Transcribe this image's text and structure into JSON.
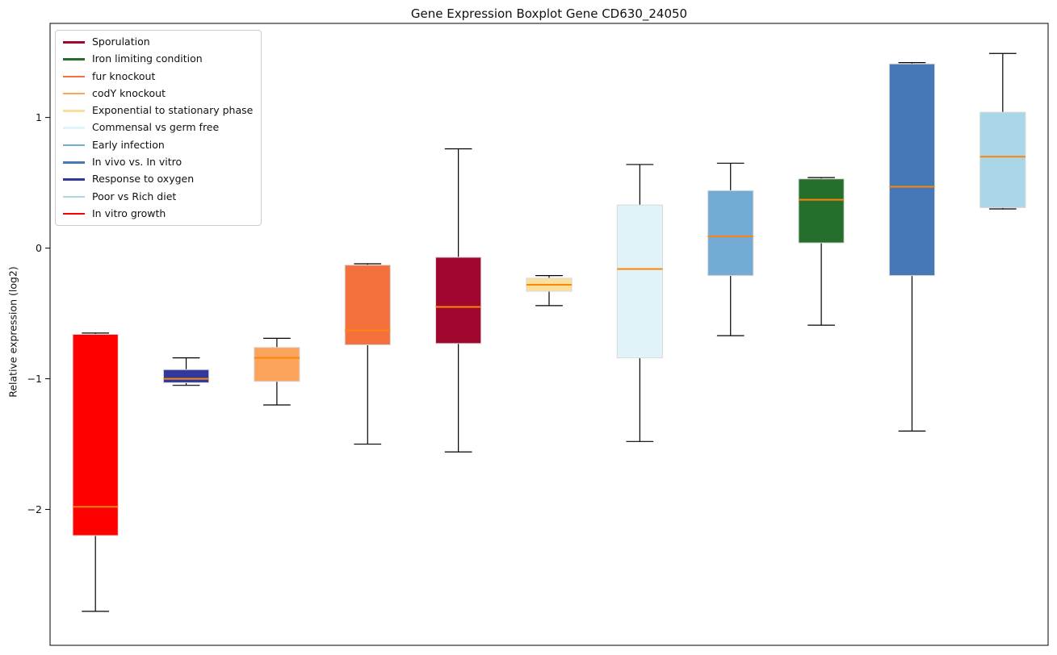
{
  "figure": {
    "title": "Gene Expression Boxplot Gene CD630_24050",
    "ylabel": "Relative expression (log2)"
  },
  "chart_data": {
    "type": "boxplot",
    "title": "Gene Expression Boxplot Gene CD630_24050",
    "xlabel": "",
    "ylabel": "Relative expression (log2)",
    "ylim": [
      -3.04,
      1.72
    ],
    "yticks": [
      1,
      0,
      -1,
      -2
    ],
    "ytick_labels": [
      "1",
      "0",
      "−1",
      "−2"
    ],
    "xtick_labels": [],
    "grid": false,
    "legend_position": "upper left",
    "median_color": "#FC8608",
    "whisker_color": "#000000",
    "box_edge_color": "#d8d8d8",
    "legend": [
      {
        "label": "Sporulation",
        "color": "#A0062E"
      },
      {
        "label": "Iron limiting condition",
        "color": "#256E2B"
      },
      {
        "label": "fur knockout",
        "color": "#F4703D"
      },
      {
        "label": "codY knockout",
        "color": "#FCA45C"
      },
      {
        "label": "Exponential to stationary phase",
        "color": "#FBDF9D"
      },
      {
        "label": "Commensal vs germ free",
        "color": "#E2F2F9"
      },
      {
        "label": "Early infection",
        "color": "#74ABD4"
      },
      {
        "label": "In vivo vs. In vitro",
        "color": "#4678B8"
      },
      {
        "label": "Response to oxygen",
        "color": "#31389B"
      },
      {
        "label": "Poor vs Rich diet",
        "color": "#A9D7E8"
      },
      {
        "label": "In vitro growth",
        "color": "#FF0000"
      }
    ],
    "boxes": [
      {
        "label": "In vitro growth",
        "color": "#FF0000",
        "whisker_low": -2.78,
        "q1": -2.2,
        "median": -1.98,
        "q3": -0.66,
        "whisker_high": -0.65
      },
      {
        "label": "Response to oxygen",
        "color": "#31389B",
        "whisker_low": -1.05,
        "q1": -1.03,
        "median": -1.0,
        "q3": -0.93,
        "whisker_high": -0.84
      },
      {
        "label": "codY knockout",
        "color": "#FCA45C",
        "whisker_low": -1.2,
        "q1": -1.02,
        "median": -0.84,
        "q3": -0.76,
        "whisker_high": -0.69
      },
      {
        "label": "fur knockout",
        "color": "#F4703D",
        "whisker_low": -1.5,
        "q1": -0.74,
        "median": -0.63,
        "q3": -0.13,
        "whisker_high": -0.12
      },
      {
        "label": "Sporulation",
        "color": "#A0062E",
        "whisker_low": -1.56,
        "q1": -0.73,
        "median": -0.45,
        "q3": -0.07,
        "whisker_high": 0.76
      },
      {
        "label": "Exponential to stationary phase",
        "color": "#FBDF9D",
        "whisker_low": -0.44,
        "q1": -0.33,
        "median": -0.28,
        "q3": -0.23,
        "whisker_high": -0.21
      },
      {
        "label": "Commensal vs germ free",
        "color": "#E2F2F9",
        "whisker_low": -1.48,
        "q1": -0.84,
        "median": -0.16,
        "q3": 0.33,
        "whisker_high": 0.64
      },
      {
        "label": "Early infection",
        "color": "#74ABD4",
        "whisker_low": -0.67,
        "q1": -0.21,
        "median": 0.09,
        "q3": 0.44,
        "whisker_high": 0.65
      },
      {
        "label": "Iron limiting condition",
        "color": "#256E2B",
        "whisker_low": -0.59,
        "q1": 0.04,
        "median": 0.37,
        "q3": 0.53,
        "whisker_high": 0.54
      },
      {
        "label": "In vivo vs. In vitro",
        "color": "#4678B8",
        "whisker_low": -1.4,
        "q1": -0.21,
        "median": 0.47,
        "q3": 1.41,
        "whisker_high": 1.42
      },
      {
        "label": "Poor vs Rich diet",
        "color": "#A9D7E8",
        "whisker_low": 0.3,
        "q1": 0.31,
        "median": 0.7,
        "q3": 1.04,
        "whisker_high": 1.49
      }
    ]
  }
}
